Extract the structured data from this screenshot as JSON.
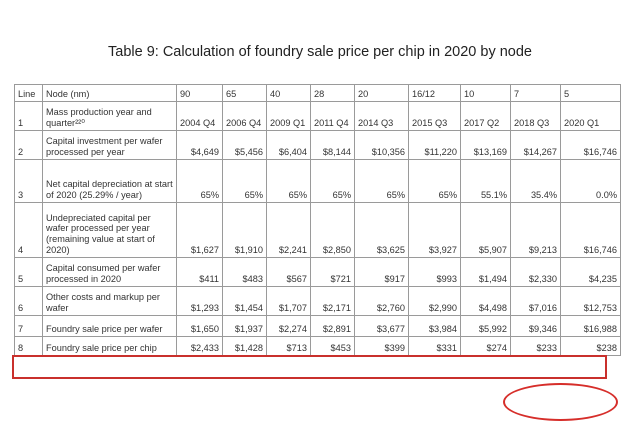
{
  "title": "Table 9: Calculation of foundry sale price per chip in 2020 by node",
  "header": {
    "line": "Line",
    "node": "Node (nm)",
    "values": [
      "90",
      "65",
      "40",
      "28",
      "20",
      "16/12",
      "10",
      "7",
      "5"
    ]
  },
  "rows": [
    {
      "line": "1",
      "desc": "Mass production year and quarter²²⁰",
      "values": [
        "2004 Q4",
        "2006 Q4",
        "2009 Q1",
        "2011 Q4",
        "2014 Q3",
        "2015 Q3",
        "2017 Q2",
        "2018 Q3",
        "2020 Q1"
      ]
    },
    {
      "line": "2",
      "desc": "Capital investment per wafer processed per year",
      "values": [
        "$4,649",
        "$5,456",
        "$6,404",
        "$8,144",
        "$10,356",
        "$11,220",
        "$13,169",
        "$14,267",
        "$16,746"
      ]
    },
    {
      "line": "3",
      "desc": "Net capital depreciation at start of 2020 (25.29% / year)",
      "values": [
        "65%",
        "65%",
        "65%",
        "65%",
        "65%",
        "65%",
        "55.1%",
        "35.4%",
        "0.0%"
      ]
    },
    {
      "line": "4",
      "desc": "Undepreciated capital per wafer processed per year (remaining value at start of 2020)",
      "values": [
        "$1,627",
        "$1,910",
        "$2,241",
        "$2,850",
        "$3,625",
        "$3,927",
        "$5,907",
        "$9,213",
        "$16,746"
      ]
    },
    {
      "line": "5",
      "desc": "Capital consumed per wafer processed in 2020",
      "values": [
        "$411",
        "$483",
        "$567",
        "$721",
        "$917",
        "$993",
        "$1,494",
        "$2,330",
        "$4,235"
      ]
    },
    {
      "line": "6",
      "desc": "Other costs and markup per wafer",
      "values": [
        "$1,293",
        "$1,454",
        "$1,707",
        "$2,171",
        "$2,760",
        "$2,990",
        "$4,498",
        "$7,016",
        "$12,753"
      ]
    },
    {
      "line": "7",
      "desc": "Foundry sale price per wafer",
      "values": [
        "$1,650",
        "$1,937",
        "$2,274",
        "$2,891",
        "$3,677",
        "$3,984",
        "$5,992",
        "$9,346",
        "$16,988"
      ]
    },
    {
      "line": "8",
      "desc": "Foundry sale price per chip",
      "values": [
        "$2,433",
        "$1,428",
        "$713",
        "$453",
        "$399",
        "$331",
        "$274",
        "$233",
        "$238"
      ]
    }
  ],
  "colors": {
    "highlight": "#c9302c",
    "grid": "#9a9a9a"
  }
}
